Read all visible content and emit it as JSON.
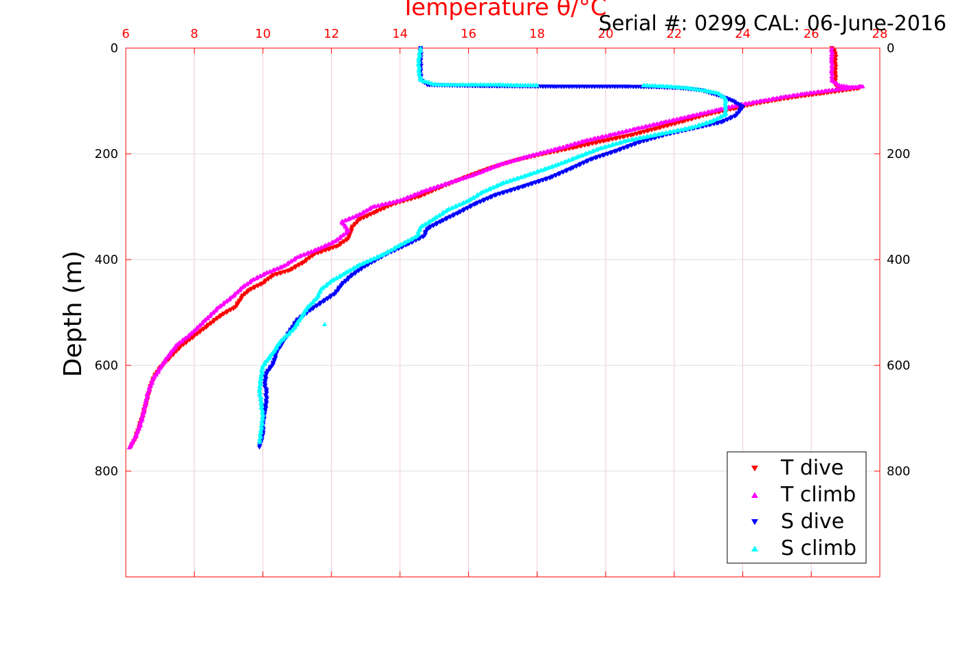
{
  "chart_data": {
    "type": "scatter",
    "title": "Temperature θ/°C",
    "subtitle": "Serial #: 0299 CAL: 06-June-2016",
    "ylabel": "Depth (m)",
    "xlim": [
      6,
      28
    ],
    "ylim": [
      0,
      1000
    ],
    "y_reversed": true,
    "x_ticks": [
      6,
      8,
      10,
      12,
      14,
      16,
      18,
      20,
      22,
      24,
      26,
      28
    ],
    "y_ticks": [
      0,
      200,
      400,
      600,
      800
    ],
    "x_axis_position": "top",
    "grid": true,
    "legend_position": "bottom-right",
    "colors": {
      "top_axis": "#ff0000",
      "frame": "#ff0000"
    },
    "series": [
      {
        "name": "T dive",
        "marker": "triangle-down",
        "color": "#ff0000",
        "points": [
          [
            26.6,
            0
          ],
          [
            26.7,
            10
          ],
          [
            26.7,
            30
          ],
          [
            26.7,
            50
          ],
          [
            26.7,
            70
          ],
          [
            26.9,
            78
          ],
          [
            27.4,
            76
          ],
          [
            26.3,
            86
          ],
          [
            25.6,
            92
          ],
          [
            25.0,
            98
          ],
          [
            24.3,
            106
          ],
          [
            23.8,
            114
          ],
          [
            23.0,
            125
          ],
          [
            22.3,
            138
          ],
          [
            21.5,
            152
          ],
          [
            20.8,
            164
          ],
          [
            20.0,
            175
          ],
          [
            19.1,
            188
          ],
          [
            18.2,
            200
          ],
          [
            17.4,
            212
          ],
          [
            16.6,
            228
          ],
          [
            15.9,
            245
          ],
          [
            15.2,
            263
          ],
          [
            14.6,
            280
          ],
          [
            13.8,
            295
          ],
          [
            13.3,
            310
          ],
          [
            12.8,
            325
          ],
          [
            12.6,
            340
          ],
          [
            12.5,
            360
          ],
          [
            12.2,
            374
          ],
          [
            11.5,
            390
          ],
          [
            11.2,
            405
          ],
          [
            10.8,
            420
          ],
          [
            10.3,
            430
          ],
          [
            10.0,
            445
          ],
          [
            9.6,
            458
          ],
          [
            9.4,
            470
          ],
          [
            9.2,
            490
          ],
          [
            8.8,
            505
          ],
          [
            8.4,
            525
          ],
          [
            8.0,
            545
          ],
          [
            7.6,
            565
          ],
          [
            7.3,
            585
          ],
          [
            7.0,
            605
          ],
          [
            6.8,
            625
          ],
          [
            6.7,
            645
          ],
          [
            6.6,
            670
          ],
          [
            6.5,
            695
          ],
          [
            6.4,
            715
          ],
          [
            6.3,
            735
          ],
          [
            6.15,
            755
          ]
        ]
      },
      {
        "name": "T climb",
        "marker": "triangle-up",
        "color": "#ff00ff",
        "points": [
          [
            26.6,
            0
          ],
          [
            26.6,
            20
          ],
          [
            26.6,
            40
          ],
          [
            26.6,
            60
          ],
          [
            26.8,
            70
          ],
          [
            27.2,
            74
          ],
          [
            27.5,
            72
          ],
          [
            26.5,
            80
          ],
          [
            25.8,
            86
          ],
          [
            25.2,
            92
          ],
          [
            24.6,
            99
          ],
          [
            23.9,
            107
          ],
          [
            23.3,
            116
          ],
          [
            22.5,
            128
          ],
          [
            21.7,
            140
          ],
          [
            20.9,
            152
          ],
          [
            20.2,
            163
          ],
          [
            19.4,
            175
          ],
          [
            18.6,
            190
          ],
          [
            17.7,
            205
          ],
          [
            16.9,
            220
          ],
          [
            16.2,
            238
          ],
          [
            15.4,
            255
          ],
          [
            14.7,
            270
          ],
          [
            14.0,
            288
          ],
          [
            13.2,
            300
          ],
          [
            12.8,
            315
          ],
          [
            12.3,
            328
          ],
          [
            12.5,
            345
          ],
          [
            12.1,
            365
          ],
          [
            11.6,
            380
          ],
          [
            11.0,
            395
          ],
          [
            10.6,
            412
          ],
          [
            10.1,
            425
          ],
          [
            9.7,
            438
          ],
          [
            9.4,
            452
          ],
          [
            9.1,
            470
          ],
          [
            8.7,
            490
          ],
          [
            8.3,
            515
          ],
          [
            7.9,
            540
          ],
          [
            7.5,
            560
          ],
          [
            7.2,
            585
          ],
          [
            7.0,
            605
          ],
          [
            6.8,
            625
          ],
          [
            6.65,
            650
          ],
          [
            6.55,
            680
          ],
          [
            6.45,
            705
          ],
          [
            6.35,
            725
          ],
          [
            6.2,
            745
          ],
          [
            6.1,
            755
          ]
        ]
      },
      {
        "name": "S dive",
        "marker": "triangle-down",
        "color": "#0000ff",
        "points": [
          [
            14.6,
            0
          ],
          [
            14.6,
            20
          ],
          [
            14.6,
            40
          ],
          [
            14.6,
            60
          ],
          [
            14.8,
            70
          ],
          [
            16.4,
            72
          ],
          [
            18.5,
            73
          ],
          [
            20.6,
            73
          ],
          [
            21.5,
            74
          ],
          [
            22.2,
            76
          ],
          [
            22.8,
            80
          ],
          [
            23.3,
            90
          ],
          [
            23.7,
            100
          ],
          [
            24.0,
            112
          ],
          [
            23.8,
            128
          ],
          [
            23.4,
            140
          ],
          [
            22.7,
            150
          ],
          [
            21.8,
            163
          ],
          [
            21.0,
            178
          ],
          [
            20.3,
            195
          ],
          [
            19.6,
            210
          ],
          [
            19.0,
            228
          ],
          [
            18.4,
            245
          ],
          [
            17.6,
            262
          ],
          [
            16.8,
            278
          ],
          [
            16.2,
            295
          ],
          [
            15.7,
            312
          ],
          [
            15.2,
            328
          ],
          [
            14.8,
            342
          ],
          [
            14.7,
            356
          ],
          [
            14.2,
            372
          ],
          [
            13.6,
            390
          ],
          [
            13.0,
            412
          ],
          [
            12.6,
            430
          ],
          [
            12.3,
            448
          ],
          [
            12.1,
            465
          ],
          [
            11.8,
            478
          ],
          [
            11.4,
            495
          ],
          [
            11.0,
            515
          ],
          [
            10.8,
            535
          ],
          [
            10.6,
            555
          ],
          [
            10.4,
            575
          ],
          [
            10.3,
            598
          ],
          [
            10.1,
            615
          ],
          [
            10.05,
            635
          ],
          [
            10.1,
            650
          ],
          [
            10.1,
            670
          ],
          [
            10.05,
            690
          ],
          [
            10.0,
            710
          ],
          [
            10.0,
            730
          ],
          [
            9.9,
            755
          ]
        ]
      },
      {
        "name": "S climb",
        "marker": "triangle-up",
        "color": "#00ffff",
        "points": [
          [
            14.6,
            0
          ],
          [
            14.55,
            20
          ],
          [
            14.55,
            40
          ],
          [
            14.6,
            60
          ],
          [
            15.0,
            68
          ],
          [
            15.3,
            69
          ],
          [
            16.1,
            69
          ],
          [
            16.9,
            69
          ],
          [
            17.4,
            70
          ],
          [
            18.0,
            70
          ],
          [
            21.1,
            70
          ],
          [
            21.8,
            72
          ],
          [
            22.4,
            75
          ],
          [
            22.9,
            80
          ],
          [
            23.3,
            85
          ],
          [
            23.5,
            95
          ],
          [
            23.5,
            110
          ],
          [
            23.5,
            125
          ],
          [
            23.1,
            138
          ],
          [
            22.5,
            150
          ],
          [
            21.6,
            162
          ],
          [
            20.6,
            175
          ],
          [
            19.8,
            190
          ],
          [
            19.2,
            205
          ],
          [
            18.6,
            220
          ],
          [
            17.8,
            238
          ],
          [
            17.0,
            255
          ],
          [
            16.4,
            272
          ],
          [
            16.0,
            288
          ],
          [
            15.4,
            305
          ],
          [
            15.0,
            322
          ],
          [
            14.6,
            338
          ],
          [
            14.5,
            355
          ],
          [
            14.0,
            372
          ],
          [
            13.5,
            390
          ],
          [
            12.8,
            410
          ],
          [
            12.4,
            425
          ],
          [
            12.0,
            440
          ],
          [
            11.7,
            455
          ],
          [
            11.6,
            470
          ],
          [
            11.3,
            490
          ],
          [
            11.1,
            510
          ],
          [
            10.9,
            530
          ],
          [
            10.5,
            555
          ],
          [
            10.3,
            575
          ],
          [
            10.0,
            600
          ],
          [
            9.95,
            620
          ],
          [
            9.9,
            645
          ],
          [
            9.95,
            670
          ],
          [
            10.0,
            695
          ],
          [
            9.95,
            720
          ],
          [
            9.9,
            745
          ],
          [
            11.8,
            522
          ]
        ]
      }
    ]
  }
}
